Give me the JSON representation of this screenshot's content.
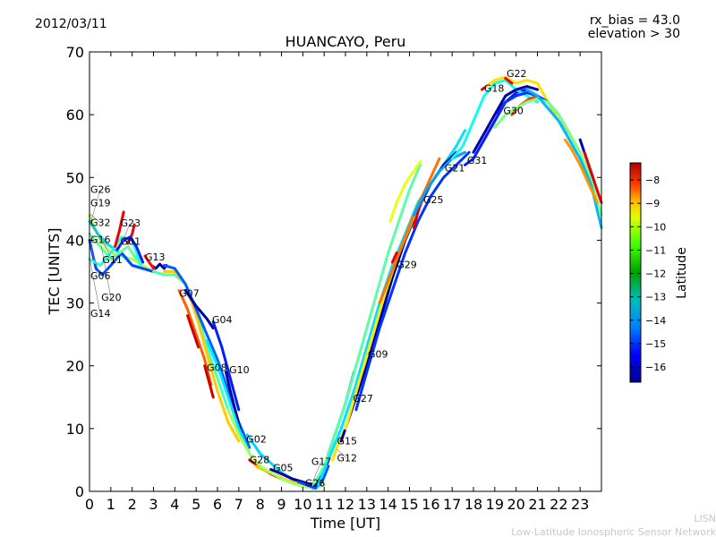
{
  "header": {
    "date": "2012/03/11",
    "rx_bias": "rx_bias = 43.0",
    "elevation": "elevation > 30"
  },
  "credit": {
    "line1": "LISN",
    "line2": "Low-Latitude Ionospheric Sensor Network"
  },
  "chart_data": {
    "type": "line",
    "title": "HUANCAYO, Peru",
    "xlabel": "Time [UT]",
    "ylabel": "TEC [UNITS]",
    "xlim": [
      0,
      24
    ],
    "ylim": [
      0,
      70
    ],
    "xticks": [
      "0",
      "1",
      "2",
      "3",
      "4",
      "5",
      "6",
      "7",
      "8",
      "9",
      "10",
      "11",
      "12",
      "13",
      "14",
      "15",
      "16",
      "17",
      "18",
      "19",
      "20",
      "21",
      "22",
      "23"
    ],
    "yticks": [
      "0",
      "10",
      "20",
      "30",
      "40",
      "50",
      "60",
      "70"
    ],
    "grid": false,
    "colorbar": {
      "label": "Latitude",
      "range": [
        -16.65,
        -7.27
      ],
      "ticks": [
        "-8",
        "-9",
        "-10",
        "-11",
        "-12",
        "-13",
        "-14",
        "-15",
        "-16"
      ],
      "colormap": "jet"
    },
    "satellite_labels": [
      {
        "name": "G19",
        "x": 0.0,
        "y": 45.6
      },
      {
        "name": "G32",
        "x": 0.0,
        "y": 44.2
      },
      {
        "name": "G16",
        "x": 0.0,
        "y": 43.2
      },
      {
        "name": "G26",
        "x": 0.0,
        "y": 42.6
      },
      {
        "name": "G11",
        "x": 0.6,
        "y": 40.0
      },
      {
        "name": "G06",
        "x": 0.0,
        "y": 39.1
      },
      {
        "name": "G20",
        "x": 0.55,
        "y": 39.1
      },
      {
        "name": "G01",
        "x": 1.45,
        "y": 39.5
      },
      {
        "name": "G23",
        "x": 1.45,
        "y": 39.0
      },
      {
        "name": "G14",
        "x": 0.0,
        "y": 36.6
      },
      {
        "name": "G13",
        "x": 2.6,
        "y": 37.0
      },
      {
        "name": "G07",
        "x": 4.2,
        "y": 31.2
      },
      {
        "name": "G04",
        "x": 5.75,
        "y": 27.0
      },
      {
        "name": "G08",
        "x": 5.5,
        "y": 19.4
      },
      {
        "name": "G10",
        "x": 6.55,
        "y": 19.0
      },
      {
        "name": "G02",
        "x": 7.35,
        "y": 8.0
      },
      {
        "name": "G28",
        "x": 7.5,
        "y": 4.7
      },
      {
        "name": "G05",
        "x": 8.6,
        "y": 3.4
      },
      {
        "name": "G26",
        "x": 10.1,
        "y": 1.0
      },
      {
        "name": "G17",
        "x": 10.4,
        "y": 1.0
      },
      {
        "name": "G15",
        "x": 11.6,
        "y": 7.7
      },
      {
        "name": "G12",
        "x": 11.6,
        "y": 6.7
      },
      {
        "name": "G27",
        "x": 12.35,
        "y": 14.5
      },
      {
        "name": "G09",
        "x": 13.05,
        "y": 21.5
      },
      {
        "name": "G29",
        "x": 14.4,
        "y": 35.8
      },
      {
        "name": "G25",
        "x": 15.65,
        "y": 46.1
      },
      {
        "name": "G21",
        "x": 16.65,
        "y": 51.2
      },
      {
        "name": "G31",
        "x": 17.7,
        "y": 52.4
      },
      {
        "name": "G18",
        "x": 18.5,
        "y": 63.9
      },
      {
        "name": "G22",
        "x": 19.55,
        "y": 66.2
      },
      {
        "name": "G30",
        "x": 19.4,
        "y": 60.3
      }
    ],
    "series": [
      {
        "name": "G19",
        "lat": -11.5,
        "x": [
          0,
          0.5,
          1,
          1.5,
          2,
          2.5,
          3
        ],
        "y": [
          44,
          40,
          38,
          37.5,
          37,
          36,
          35
        ]
      },
      {
        "name": "G32",
        "lat": -13.5,
        "x": [
          0,
          0.4,
          0.8,
          1.2,
          1.6,
          2,
          2.5
        ],
        "y": [
          43,
          41,
          39.5,
          38.5,
          37.5,
          36,
          35.5
        ]
      },
      {
        "name": "G16",
        "lat": -14.8,
        "x": [
          0,
          0.3,
          0.6,
          1,
          1.5,
          2,
          2.5,
          3
        ],
        "y": [
          40,
          35.5,
          34.5,
          36,
          38,
          36,
          35.5,
          35
        ]
      },
      {
        "name": "G06",
        "lat": -12.2,
        "x": [
          0,
          0.5,
          1,
          1.4,
          1.8,
          2.2
        ],
        "y": [
          41,
          39,
          37,
          38,
          39,
          37
        ]
      },
      {
        "name": "G14",
        "lat": -12.8,
        "x": [
          0,
          0.5,
          1,
          1.5,
          2,
          2.4
        ],
        "y": [
          37,
          36,
          38,
          40.5,
          40,
          36
        ]
      },
      {
        "name": "G11",
        "lat": -8.3,
        "x": [
          1.2,
          1.4,
          1.6
        ],
        "y": [
          39,
          41.5,
          44.5
        ]
      },
      {
        "name": "G01",
        "lat": -8.3,
        "x": [
          1.8,
          2,
          2.1
        ],
        "y": [
          39.5,
          41,
          42.5
        ]
      },
      {
        "name": "G23",
        "lat": -15.2,
        "x": [
          1.3,
          1.6,
          1.9,
          2.2,
          2.5
        ],
        "y": [
          38.5,
          40,
          40.5,
          39,
          36.5
        ]
      },
      {
        "name": "G13",
        "lat": -16.2,
        "x": [
          2.9,
          3.1,
          3.3,
          3.5,
          3.6
        ],
        "y": [
          36,
          35.5,
          36.2,
          35.5,
          36
        ]
      },
      {
        "name": "G13b",
        "lat": -8.6,
        "x": [
          2.6,
          2.8,
          3.0
        ],
        "y": [
          37.5,
          36.5,
          35.5
        ]
      },
      {
        "name": "G20",
        "lat": -12.5,
        "x": [
          3,
          3.5,
          4,
          4.5,
          5,
          5.5,
          6,
          6.5,
          7
        ],
        "y": [
          35,
          34.5,
          34.5,
          33,
          29,
          23,
          18,
          13,
          9
        ]
      },
      {
        "name": "G07",
        "lat": -10.3,
        "x": [
          3.5,
          4,
          4.5,
          5,
          5.5,
          6,
          6.5,
          7
        ],
        "y": [
          35,
          35,
          33,
          28,
          22,
          16,
          11,
          8
        ]
      },
      {
        "name": "G07b",
        "lat": -9.3,
        "x": [
          4.2,
          4.6,
          5,
          5.4,
          5.7
        ],
        "y": [
          32,
          29,
          25,
          21,
          17
        ]
      },
      {
        "name": "G07c",
        "lat": -8.0,
        "x": [
          4.6,
          4.9,
          5.1
        ],
        "y": [
          28,
          25,
          23
        ]
      },
      {
        "name": "G04",
        "lat": -14.6,
        "x": [
          3.5,
          4,
          4.5,
          5,
          5.5,
          6,
          6.5,
          7,
          7.5
        ],
        "y": [
          36,
          35.5,
          33,
          29,
          25,
          21,
          16,
          11,
          7
        ]
      },
      {
        "name": "G04b",
        "lat": -16.3,
        "x": [
          4.5,
          5,
          5.5,
          5.8
        ],
        "y": [
          32,
          29.5,
          27.5,
          26
        ]
      },
      {
        "name": "G04c",
        "lat": -15.2,
        "x": [
          5.8,
          6.2,
          6.6,
          7
        ],
        "y": [
          27,
          23,
          18,
          13
        ]
      },
      {
        "name": "G08",
        "lat": -8.0,
        "x": [
          5.4,
          5.6,
          5.8
        ],
        "y": [
          20,
          17.5,
          15
        ]
      },
      {
        "name": "G10",
        "lat": -16.4,
        "x": [
          6.4,
          6.6,
          6.9,
          7.2
        ],
        "y": [
          19,
          16,
          12,
          8
        ]
      },
      {
        "name": "G08b",
        "lat": -13.3,
        "x": [
          5.5,
          6,
          6.5,
          7,
          7.5,
          8,
          9,
          10,
          10.5
        ],
        "y": [
          24,
          20,
          15,
          10,
          6,
          4,
          2,
          1,
          0.5
        ]
      },
      {
        "name": "G02",
        "lat": -13.5,
        "x": [
          7.4,
          8,
          8.5,
          9,
          9.5,
          10,
          10.5
        ],
        "y": [
          9,
          6,
          4.5,
          3,
          2,
          1.2,
          0.7
        ]
      },
      {
        "name": "G28",
        "lat": -8.2,
        "x": [
          7.5,
          8,
          8.5,
          9
        ],
        "y": [
          5,
          3.8,
          2.8,
          2
        ]
      },
      {
        "name": "G28b",
        "lat": -10.2,
        "x": [
          7.8,
          8.3,
          8.8,
          9.3,
          9.8
        ],
        "y": [
          4,
          3.2,
          2.5,
          1.7,
          1.2
        ]
      },
      {
        "name": "G05",
        "lat": -16.4,
        "x": [
          8.5,
          9,
          9.5,
          10,
          10.5
        ],
        "y": [
          3.5,
          2.8,
          2,
          1.5,
          1
        ]
      },
      {
        "name": "G26",
        "lat": -11.6,
        "x": [
          6.5,
          7,
          7.5,
          8,
          8.5,
          9,
          9.5,
          10,
          10.5,
          11
        ],
        "y": [
          13,
          9,
          6,
          4,
          3,
          2,
          1.3,
          0.8,
          0.6,
          1
        ]
      },
      {
        "name": "G17",
        "lat": -14.8,
        "x": [
          9.8,
          10.2,
          10.6,
          10.9,
          11.2
        ],
        "y": [
          1.5,
          1,
          0.5,
          1.5,
          4
        ]
      },
      {
        "name": "G15",
        "lat": -16.3,
        "x": [
          10.6,
          11,
          11.3
        ],
        "y": [
          1,
          3.5,
          6.5
        ]
      },
      {
        "name": "G12",
        "lat": -10.5,
        "x": [
          11.4,
          11.7,
          12,
          12.3
        ],
        "y": [
          5,
          8,
          10,
          13
        ]
      },
      {
        "name": "G27",
        "lat": -14.8,
        "x": [
          11.2,
          11.6,
          12,
          12.4
        ],
        "y": [
          6,
          10,
          14,
          19
        ]
      },
      {
        "name": "G09a",
        "lat": -12.3,
        "x": [
          10.5,
          11,
          11.5,
          12,
          12.5,
          13,
          13.5,
          14,
          14.5,
          15,
          15.5
        ],
        "y": [
          1,
          4,
          9,
          14,
          20,
          26,
          32,
          38,
          43,
          48,
          52
        ]
      },
      {
        "name": "G09b",
        "lat": -13.4,
        "x": [
          10.7,
          11.2,
          11.8,
          12.4,
          13,
          13.6,
          14.2,
          14.8,
          15.4,
          16,
          16.6,
          17.2,
          17.6
        ],
        "y": [
          0.8,
          5,
          10,
          16,
          23,
          30,
          36,
          41,
          46,
          49,
          52,
          55,
          57.5
        ]
      },
      {
        "name": "G09c",
        "lat": -16.4,
        "x": [
          11.8,
          12.4,
          13,
          13.6,
          14.2,
          14.8,
          15.4,
          16,
          16.6,
          17.2
        ],
        "y": [
          8,
          14,
          20,
          27,
          34,
          40,
          45,
          49,
          52,
          54
        ]
      },
      {
        "name": "G09d",
        "lat": -10.6,
        "x": [
          12,
          12.6,
          13.2,
          13.8,
          14.4,
          15,
          15.6,
          16.2
        ],
        "y": [
          10,
          17,
          24,
          31,
          37,
          42,
          47,
          50
        ]
      },
      {
        "name": "G09e",
        "lat": -15.0,
        "x": [
          12.5,
          13,
          13.6,
          14.2,
          14.8,
          15.4,
          16,
          16.6,
          17.2,
          17.8
        ],
        "y": [
          13,
          19,
          26,
          32,
          38,
          43,
          47,
          50,
          52,
          54
        ]
      },
      {
        "name": "G29",
        "lat": -9.5,
        "x": [
          13.6,
          14,
          14.4,
          14.8,
          15.2,
          15.6,
          16,
          16.4
        ],
        "y": [
          30,
          33.5,
          37,
          40.5,
          44,
          47,
          50,
          53
        ]
      },
      {
        "name": "G29b",
        "lat": -8.2,
        "x": [
          14.2,
          14.4
        ],
        "y": [
          36.5,
          38
        ]
      },
      {
        "name": "G25",
        "lat": -8.2,
        "x": [
          15.2,
          15.4,
          15.6
        ],
        "y": [
          42,
          44.5,
          46.5
        ]
      },
      {
        "name": "G25b",
        "lat": -11.0,
        "x": [
          14.1,
          14.4,
          14.8,
          15.2,
          15.5
        ],
        "y": [
          43,
          46,
          49,
          51,
          52.5
        ]
      },
      {
        "name": "G21",
        "lat": -14.0,
        "x": [
          15.2,
          15.8,
          16.4,
          17,
          17.6
        ],
        "y": [
          44,
          48,
          51,
          53,
          54
        ]
      },
      {
        "name": "G31",
        "lat": -15.2,
        "x": [
          17.6,
          18,
          18.5,
          19,
          19.5,
          20,
          20.5,
          21
        ],
        "y": [
          52,
          53,
          56,
          59,
          62,
          63.5,
          64,
          63
        ]
      },
      {
        "name": "G18",
        "lat": -13.0,
        "x": [
          17,
          17.5,
          18,
          18.5,
          19,
          19.5,
          20,
          20.5,
          21
        ],
        "y": [
          53,
          55,
          59,
          63,
          65,
          65.5,
          64,
          63,
          62
        ]
      },
      {
        "name": "G18b",
        "lat": -8.3,
        "x": [
          18.4,
          18.6
        ],
        "y": [
          64,
          64.5
        ]
      },
      {
        "name": "G22",
        "lat": -10.5,
        "x": [
          18.6,
          19,
          19.5,
          20,
          20.5,
          21,
          21.5,
          22,
          22.5,
          23
        ],
        "y": [
          64.5,
          65.5,
          66,
          65,
          65.5,
          65,
          62,
          59,
          57,
          54
        ]
      },
      {
        "name": "G22b",
        "lat": -8.3,
        "x": [
          19.5,
          19.8
        ],
        "y": [
          65.8,
          65
        ]
      },
      {
        "name": "G30",
        "lat": -15.0,
        "x": [
          19,
          19.5,
          20,
          20.5,
          21,
          21.5,
          22,
          22.5
        ],
        "y": [
          60,
          62,
          63,
          63.5,
          63,
          62,
          60,
          57
        ]
      },
      {
        "name": "G30b",
        "lat": -9.0,
        "x": [
          19.8,
          20.2,
          20.6,
          21
        ],
        "y": [
          60,
          61.5,
          62.5,
          63
        ]
      },
      {
        "name": "G30c",
        "lat": -16.3,
        "x": [
          18,
          18.5,
          19,
          19.5,
          20,
          20.5,
          21
        ],
        "y": [
          54,
          57,
          60,
          63,
          64,
          64.5,
          64
        ]
      },
      {
        "name": "G21b",
        "lat": -12.0,
        "x": [
          19,
          19.5,
          20,
          20.5,
          21,
          21.5,
          22,
          22.5,
          23,
          23.5,
          24
        ],
        "y": [
          58,
          60,
          61,
          62,
          62.5,
          62,
          60,
          57,
          54,
          50,
          44
        ]
      },
      {
        "name": "G21c",
        "lat": -13.8,
        "x": [
          20.5,
          21,
          21.5,
          22,
          22.5,
          23,
          23.5,
          24
        ],
        "y": [
          64,
          63,
          61,
          59,
          56,
          53,
          49,
          42
        ]
      },
      {
        "name": "G21d",
        "lat": -9.8,
        "x": [
          22.3,
          22.6,
          23,
          23.4,
          23.8
        ],
        "y": [
          56,
          54.5,
          52,
          49,
          46
        ]
      },
      {
        "name": "G21e",
        "lat": -16.2,
        "x": [
          23,
          23.3,
          23.6
        ],
        "y": [
          56,
          53,
          50
        ]
      },
      {
        "name": "G21f",
        "lat": -8.2,
        "x": [
          23.2,
          23.5,
          23.8,
          24
        ],
        "y": [
          54,
          51,
          48,
          46
        ]
      }
    ]
  }
}
